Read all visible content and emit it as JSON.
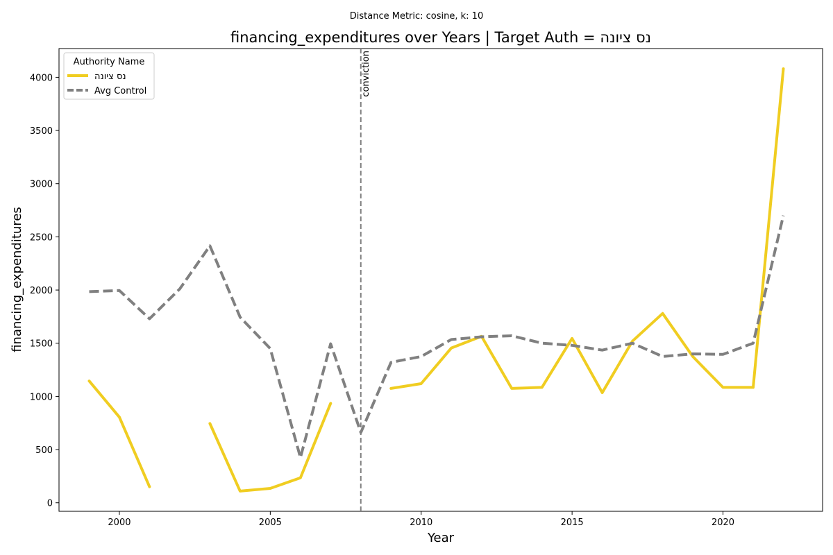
{
  "chart_data": {
    "type": "line",
    "suptitle": "Distance Metric: cosine, k: 10",
    "title": "financing_expenditures over Years | Target Auth = נס ציונה",
    "xlabel": "Year",
    "ylabel": "financing_expenditures",
    "xlim": [
      1998,
      2023.3
    ],
    "ylim": [
      -80,
      4270
    ],
    "xticks": [
      2000,
      2005,
      2010,
      2015,
      2020
    ],
    "yticks": [
      0,
      500,
      1000,
      1500,
      2000,
      2500,
      3000,
      3500,
      4000
    ],
    "grid": false,
    "legend": {
      "title": "Authority Name",
      "placement": "top-left"
    },
    "x": [
      1999,
      2000,
      2001,
      2002,
      2003,
      2004,
      2005,
      2006,
      2007,
      2008,
      2009,
      2010,
      2011,
      2012,
      2013,
      2014,
      2015,
      2016,
      2017,
      2018,
      2019,
      2020,
      2021,
      2022
    ],
    "series": [
      {
        "name": "נס ציונה",
        "color": "#f0cd21",
        "style": "solid",
        "values": [
          1145,
          805,
          150,
          null,
          745,
          110,
          135,
          235,
          935,
          null,
          1075,
          1120,
          1455,
          1565,
          1075,
          1085,
          1545,
          1035,
          1520,
          1780,
          1375,
          1085,
          1085,
          4080
        ]
      },
      {
        "name": "Avg Control",
        "color": "#808080",
        "style": "dashed",
        "values": [
          1985,
          1995,
          1730,
          2010,
          2415,
          1745,
          1450,
          425,
          1495,
          660,
          1320,
          1375,
          1535,
          1560,
          1570,
          1500,
          1480,
          1435,
          1500,
          1375,
          1400,
          1395,
          1500,
          2700
        ]
      }
    ],
    "annotations": [
      {
        "type": "vline",
        "x": 2008,
        "label": "conviction",
        "color": "#808080",
        "style": "dashed"
      }
    ]
  }
}
